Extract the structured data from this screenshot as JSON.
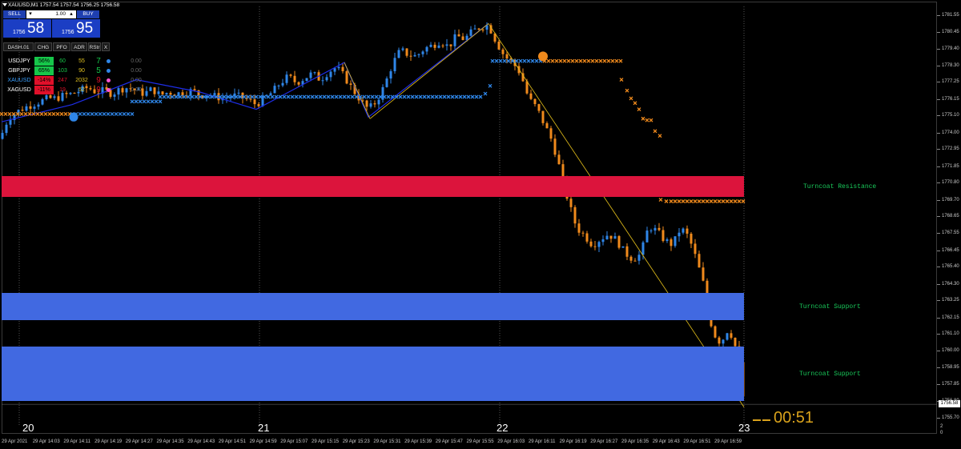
{
  "window": {
    "title": "XAUUSD,M1  1757.54 1757.54 1756.25 1756.58"
  },
  "trade_panel": {
    "sell_label": "SELL",
    "buy_label": "BUY",
    "lot_minus": "▾",
    "lot_plus": "▴",
    "lot_value": "1.00",
    "sell_price_small": "1756",
    "sell_price_big": "58",
    "buy_price_small": "1756",
    "buy_price_big": "95"
  },
  "dashboard": {
    "tabs": [
      "DASH.01",
      "CHG",
      "PFO",
      "ADR",
      "RStr",
      "X"
    ],
    "rows": [
      {
        "symbol": "USDJPY",
        "chg": "56%",
        "pfo": "60",
        "adr": "55",
        "rstr": "7",
        "value": "0.00",
        "chg_color": "#16c74a",
        "rstr_color": "#16c74a",
        "dot_color": "#2f86e8",
        "symbol_color": "#ffffff"
      },
      {
        "symbol": "GBPJPY",
        "chg": "65%",
        "pfo": "103",
        "adr": "90",
        "rstr": "5",
        "value": "0.00",
        "chg_color": "#16c74a",
        "rstr_color": "#16c74a",
        "dot_color": "#2f86e8",
        "symbol_color": "#ffffff"
      },
      {
        "symbol": "XAUUSD",
        "chg": "-14%",
        "pfo": "247",
        "adr": "2032",
        "rstr": "9",
        "value": "0.00",
        "chg_color": "#e0102a",
        "rstr_color": "#e0102a",
        "dot_color": "#ff55d0",
        "symbol_color": "#3aa0ff"
      },
      {
        "symbol": "XAGUSD",
        "chg": "-11%",
        "pfo": "19",
        "adr": "52",
        "rstr": "9",
        "value": "0.00",
        "chg_color": "#e0102a",
        "rstr_color": "#e0102a",
        "dot_color": "#ff55d0",
        "symbol_color": "#ffffff"
      }
    ]
  },
  "zones": [
    {
      "name": "Turncoat Resistance",
      "type": "resistance",
      "color": "#dc143c",
      "top_price": 1771.2,
      "bottom_price": 1769.9,
      "label": "Turncoat Resistance"
    },
    {
      "name": "Turncoat Support",
      "type": "support",
      "color": "#4169e1",
      "top_price": 1763.7,
      "bottom_price": 1762.0,
      "label": "Turncoat Support"
    },
    {
      "name": "Turncoat Support",
      "type": "support",
      "color": "#4169e1",
      "top_price": 1760.3,
      "bottom_price": 1756.8,
      "label": "Turncoat Support"
    }
  ],
  "price_axis": {
    "ticks": [
      "1781.55",
      "1780.45",
      "1779.40",
      "1778.30",
      "1777.25",
      "1776.15",
      "1775.10",
      "1774.00",
      "1772.95",
      "1771.85",
      "1770.80",
      "1769.70",
      "1768.65",
      "1767.55",
      "1766.45",
      "1765.40",
      "1764.30",
      "1763.25",
      "1762.15",
      "1761.10",
      "1760.00",
      "1758.95",
      "1757.85",
      "1756.80",
      "1755.70"
    ],
    "current_price": "1756.58",
    "extra": [
      "2",
      "0"
    ]
  },
  "time_axis": {
    "day_labels": [
      "20",
      "21",
      "22",
      "23"
    ],
    "times": [
      "29 Apr 2021",
      "29 Apr 14:03",
      "29 Apr 14:11",
      "29 Apr 14:19",
      "29 Apr 14:27",
      "29 Apr 14:35",
      "29 Apr 14:43",
      "29 Apr 14:51",
      "29 Apr 14:59",
      "29 Apr 15:07",
      "29 Apr 15:15",
      "29 Apr 15:23",
      "29 Apr 15:31",
      "29 Apr 15:39",
      "29 Apr 15:47",
      "29 Apr 15:55",
      "29 Apr 16:03",
      "29 Apr 16:11",
      "29 Apr 16:19",
      "29 Apr 16:27",
      "29 Apr 16:35",
      "29 Apr 16:43",
      "29 Apr 16:51",
      "29 Apr 16:59"
    ]
  },
  "timer": "00:51",
  "colors": {
    "bull": "#2f86e8",
    "bear": "#f08a1c",
    "background": "#000000",
    "grid_vertical": "#555555",
    "trendline": "#e8c21a",
    "channel": "#1e2ee8"
  },
  "chart_data": {
    "type": "candlestick",
    "symbol": "XAUUSD",
    "timeframe": "M1",
    "ohlc_last": {
      "open": 1757.54,
      "high": 1757.54,
      "low": 1756.25,
      "close": 1756.58
    },
    "ylim": [
      1755.2,
      1782.1
    ],
    "close_path": [
      [
        0,
        1773.6
      ],
      [
        10,
        1774.9
      ],
      [
        20,
        1775.3
      ],
      [
        30,
        1775.6
      ],
      [
        40,
        1775.8
      ],
      [
        50,
        1776.0
      ],
      [
        60,
        1776.2
      ],
      [
        70,
        1776.2
      ],
      [
        80,
        1776.4
      ],
      [
        90,
        1776.5
      ],
      [
        100,
        1776.7
      ],
      [
        110,
        1776.9
      ],
      [
        120,
        1776.6
      ],
      [
        130,
        1776.7
      ],
      [
        140,
        1776.5
      ],
      [
        150,
        1776.8
      ],
      [
        160,
        1776.9
      ],
      [
        170,
        1776.7
      ],
      [
        180,
        1776.5
      ],
      [
        190,
        1776.8
      ],
      [
        200,
        1776.4
      ],
      [
        210,
        1776.6
      ],
      [
        220,
        1776.5
      ],
      [
        230,
        1776.6
      ],
      [
        240,
        1776.7
      ],
      [
        250,
        1776.4
      ],
      [
        260,
        1776.5
      ],
      [
        270,
        1776.3
      ],
      [
        280,
        1776.2
      ],
      [
        290,
        1776.4
      ],
      [
        300,
        1776.3
      ],
      [
        310,
        1776.1
      ],
      [
        320,
        1775.8
      ],
      [
        330,
        1776.2
      ],
      [
        340,
        1776.6
      ],
      [
        350,
        1777.2
      ],
      [
        360,
        1777.6
      ],
      [
        370,
        1777.2
      ],
      [
        380,
        1777.5
      ],
      [
        390,
        1777.8
      ],
      [
        400,
        1777.4
      ],
      [
        410,
        1777.9
      ],
      [
        420,
        1778.2
      ],
      [
        430,
        1777.6
      ],
      [
        440,
        1776.8
      ],
      [
        450,
        1776.1
      ],
      [
        460,
        1775.5
      ],
      [
        470,
        1776.0
      ],
      [
        480,
        1777.0
      ],
      [
        490,
        1778.4
      ],
      [
        500,
        1779.3
      ],
      [
        510,
        1779.0
      ],
      [
        520,
        1778.9
      ],
      [
        530,
        1779.4
      ],
      [
        540,
        1779.6
      ],
      [
        550,
        1779.9
      ],
      [
        560,
        1779.5
      ],
      [
        570,
        1780.2
      ],
      [
        580,
        1780.0
      ],
      [
        590,
        1780.5
      ],
      [
        600,
        1780.8
      ],
      [
        610,
        1780.9
      ],
      [
        620,
        1779.8
      ],
      [
        630,
        1778.9
      ],
      [
        640,
        1778.5
      ],
      [
        650,
        1777.8
      ],
      [
        660,
        1776.2
      ],
      [
        670,
        1775.6
      ],
      [
        680,
        1774.5
      ],
      [
        690,
        1773.4
      ],
      [
        700,
        1771.5
      ],
      [
        710,
        1769.5
      ],
      [
        720,
        1767.9
      ],
      [
        730,
        1767.4
      ],
      [
        740,
        1766.8
      ],
      [
        750,
        1767.2
      ],
      [
        760,
        1767.5
      ],
      [
        770,
        1767.1
      ],
      [
        780,
        1766.3
      ],
      [
        790,
        1765.9
      ],
      [
        800,
        1766.2
      ],
      [
        810,
        1768.0
      ],
      [
        820,
        1767.7
      ],
      [
        830,
        1767.1
      ],
      [
        840,
        1766.8
      ],
      [
        850,
        1767.9
      ],
      [
        860,
        1767.3
      ],
      [
        870,
        1765.8
      ],
      [
        880,
        1764.0
      ],
      [
        890,
        1761.2
      ],
      [
        900,
        1760.5
      ],
      [
        910,
        1761.5
      ],
      [
        920,
        1760.0
      ],
      [
        925,
        1758.5
      ],
      [
        929,
        1756.6
      ]
    ]
  }
}
